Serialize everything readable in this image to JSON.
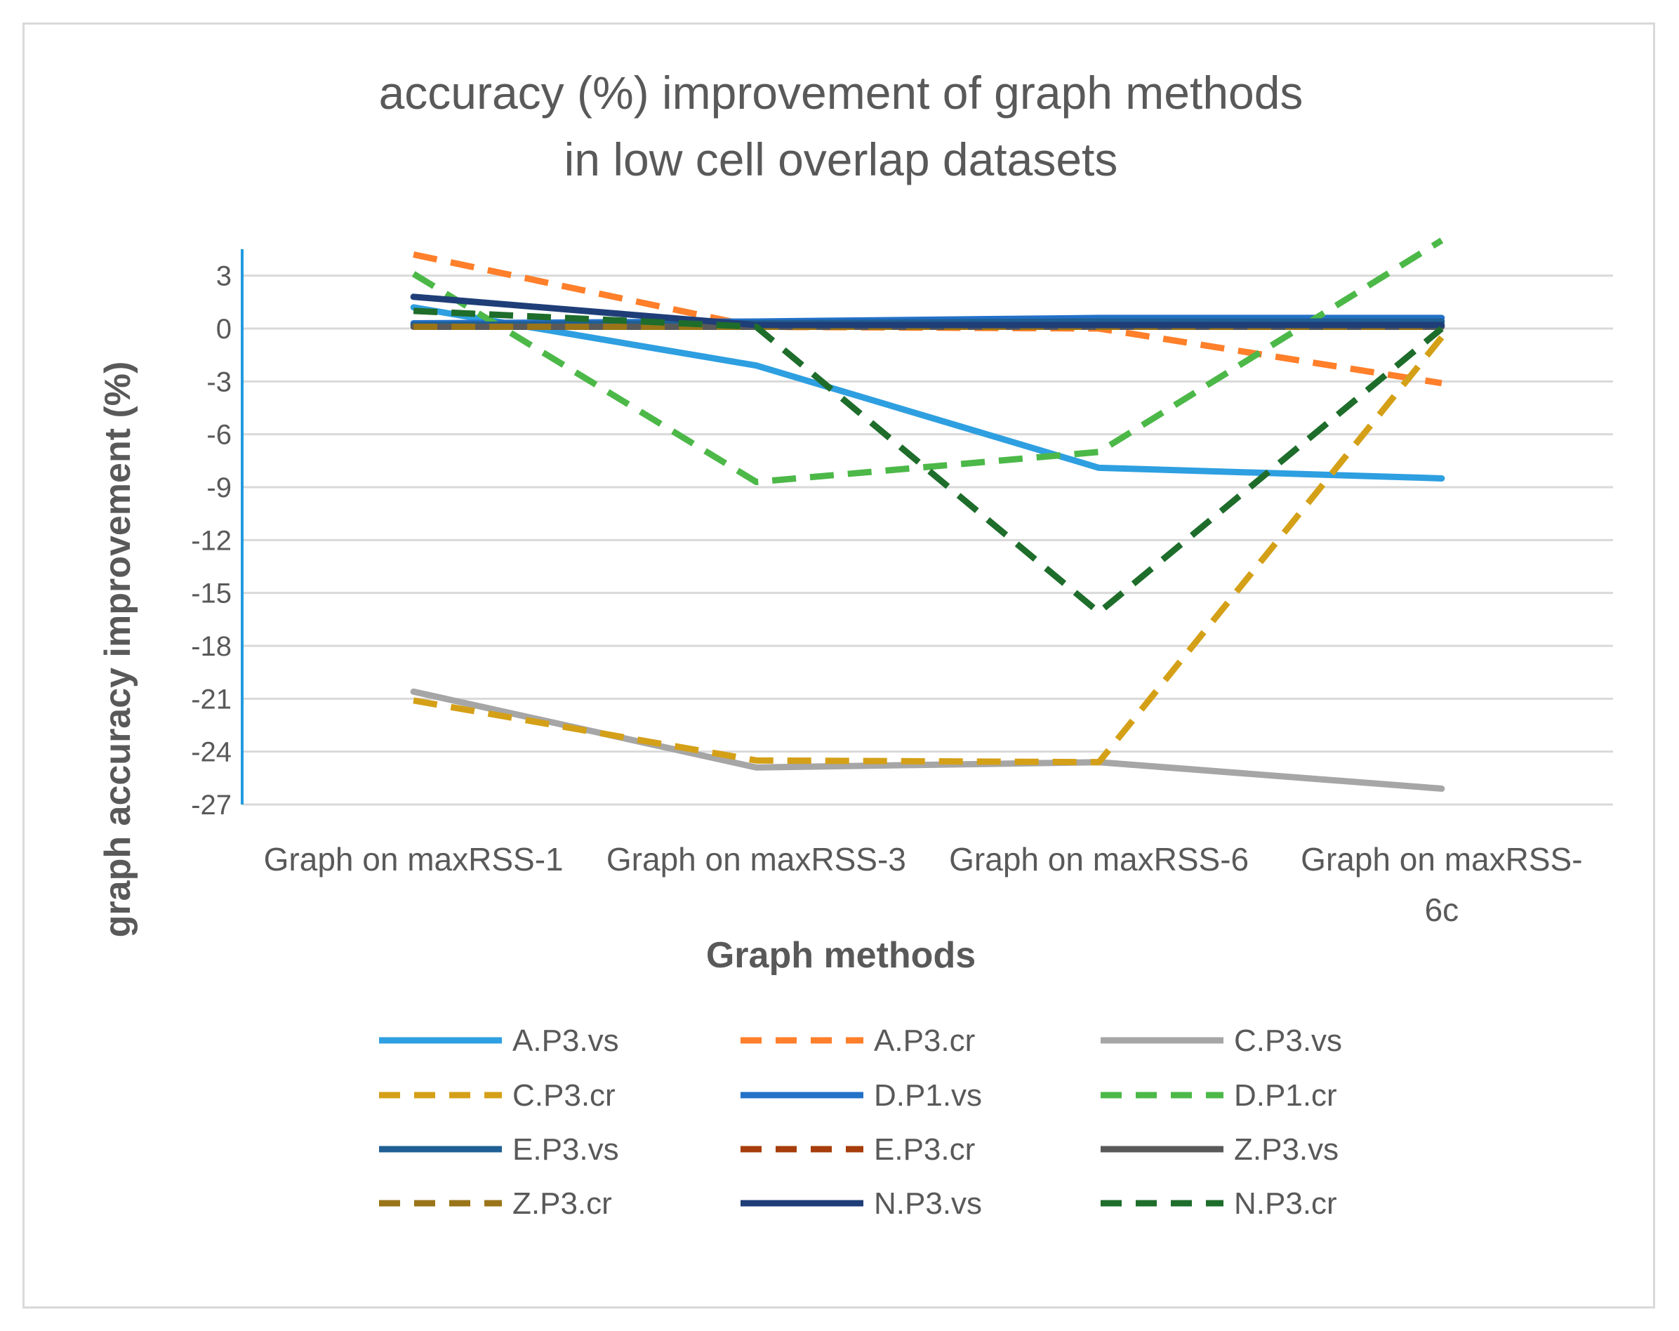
{
  "chart_data": {
    "type": "line",
    "title": [
      "accuracy (%) improvement of graph methods",
      "in low cell overlap datasets"
    ],
    "xlabel": "Graph methods",
    "ylabel": "graph accuracy improvement (%)",
    "categories": [
      [
        "Graph on maxRSS-1"
      ],
      [
        "Graph on maxRSS-3"
      ],
      [
        "Graph on maxRSS-6"
      ],
      [
        "Graph on maxRSS-",
        "6c"
      ]
    ],
    "ylim": [
      -27,
      4.5
    ],
    "yticks": [
      3,
      0,
      -3,
      -6,
      -9,
      -12,
      -15,
      -18,
      -21,
      -24,
      -27
    ],
    "ytick_labels": [
      "3",
      "0",
      "-3",
      "-6",
      "-9",
      "-12",
      "-15",
      "-18",
      "-21",
      "-24",
      "-27"
    ],
    "grid": true,
    "legend_position": "bottom",
    "series": [
      {
        "name": "A.P3.vs",
        "color": "#2e9fe0",
        "dash": false,
        "values": [
          1.2,
          -2.1,
          -7.9,
          -8.5
        ]
      },
      {
        "name": "A.P3.cr",
        "color": "#ff7f2a",
        "dash": true,
        "values": [
          4.2,
          0.1,
          0.0,
          -3.1
        ]
      },
      {
        "name": "C.P3.vs",
        "color": "#a6a6a6",
        "dash": false,
        "values": [
          -20.6,
          -24.9,
          -24.6,
          -26.1
        ]
      },
      {
        "name": "C.P3.cr",
        "color": "#d4a017",
        "dash": true,
        "values": [
          -21.1,
          -24.5,
          -24.6,
          -0.5
        ]
      },
      {
        "name": "D.P1.vs",
        "color": "#2471c8",
        "dash": false,
        "values": [
          0.3,
          0.4,
          0.6,
          0.6
        ]
      },
      {
        "name": "D.P1.cr",
        "color": "#4cb848",
        "dash": true,
        "values": [
          3.1,
          -8.7,
          -7.0,
          5.0
        ]
      },
      {
        "name": "E.P3.vs",
        "color": "#1f5f94",
        "dash": false,
        "values": [
          0.2,
          0.3,
          0.4,
          0.4
        ]
      },
      {
        "name": "E.P3.cr",
        "color": "#a63d0a",
        "dash": true,
        "values": [
          0.1,
          0.1,
          0.1,
          0.1
        ]
      },
      {
        "name": "Z.P3.vs",
        "color": "#595959",
        "dash": false,
        "values": [
          0.1,
          0.1,
          0.1,
          0.1
        ]
      },
      {
        "name": "Z.P3.cr",
        "color": "#9a7418",
        "dash": true,
        "values": [
          0.1,
          0.1,
          0.1,
          0.1
        ]
      },
      {
        "name": "N.P3.vs",
        "color": "#1f3e78",
        "dash": false,
        "values": [
          1.8,
          0.2,
          0.2,
          0.2
        ]
      },
      {
        "name": "N.P3.cr",
        "color": "#1e6d2b",
        "dash": true,
        "values": [
          1.0,
          0.1,
          -16.1,
          0.0
        ]
      }
    ]
  }
}
